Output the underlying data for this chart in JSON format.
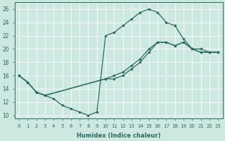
{
  "xlabel": "Humidex (Indice chaleur)",
  "xlim": [
    -0.5,
    23.5
  ],
  "ylim": [
    9.5,
    27
  ],
  "xticks": [
    0,
    1,
    2,
    3,
    4,
    5,
    6,
    7,
    8,
    9,
    10,
    11,
    12,
    13,
    14,
    15,
    16,
    17,
    18,
    19,
    20,
    21,
    22,
    23
  ],
  "yticks": [
    10,
    12,
    14,
    16,
    18,
    20,
    22,
    24,
    26
  ],
  "bg_color": "#cce8e0",
  "line_color": "#2a6b5e",
  "line1_x": [
    0,
    1,
    2,
    3,
    4,
    5,
    6,
    7,
    8,
    9,
    10,
    11,
    12,
    13,
    14,
    15,
    16,
    17,
    18,
    19,
    20,
    21,
    22,
    23
  ],
  "line1_y": [
    16,
    15,
    13.5,
    13,
    12.5,
    11.5,
    11,
    10.5,
    10,
    10.5,
    22.0,
    22.5,
    23.5,
    24.5,
    25.5,
    26.0,
    25.5,
    24.0,
    23.5,
    21.5,
    20.0,
    20.0,
    19.5,
    19.5
  ],
  "line2_x": [
    0,
    1,
    2,
    3,
    10,
    11,
    12,
    13,
    14,
    15,
    16,
    17,
    18,
    19,
    20,
    21,
    22,
    23
  ],
  "line2_y": [
    16,
    15,
    13.5,
    13,
    15.5,
    16.0,
    16.5,
    17.5,
    18.5,
    20.0,
    21.0,
    21.0,
    20.5,
    21.0,
    20.0,
    19.5,
    19.5,
    19.5
  ],
  "line3_x": [
    0,
    1,
    2,
    3,
    10,
    11,
    12,
    13,
    14,
    15,
    16,
    17,
    18,
    19,
    20,
    21,
    22,
    23
  ],
  "line3_y": [
    16,
    15,
    13.5,
    13,
    15.5,
    15.5,
    16.0,
    17.0,
    18.0,
    19.5,
    21.0,
    21.0,
    20.5,
    21.0,
    20.0,
    19.5,
    19.5,
    19.5
  ]
}
